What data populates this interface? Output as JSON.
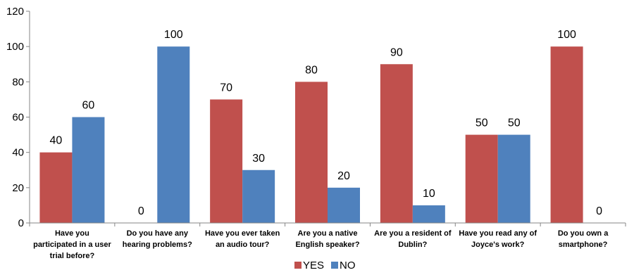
{
  "chart_data": {
    "type": "bar",
    "categories": [
      [
        "Have you",
        "participated in a user",
        "trial before?"
      ],
      [
        "Do you have any",
        "hearing problems?"
      ],
      [
        "Have you ever taken",
        "an audio tour?"
      ],
      [
        "Are you a native",
        "English speaker?"
      ],
      [
        "Are you a resident of",
        "Dublin?"
      ],
      [
        "Have you read any of",
        "Joyce's work?"
      ],
      [
        "Do you own a",
        "smartphone?"
      ]
    ],
    "series": [
      {
        "name": "YES",
        "color": "#c0504d",
        "values": [
          40,
          0,
          70,
          80,
          90,
          50,
          100
        ]
      },
      {
        "name": "NO",
        "color": "#4f81bd",
        "values": [
          60,
          100,
          30,
          20,
          10,
          50,
          0
        ]
      }
    ],
    "ylim": [
      0,
      120
    ],
    "yticks": [
      0,
      20,
      40,
      60,
      80,
      100,
      120
    ],
    "legend_position": "bottom-center",
    "grid": false
  }
}
